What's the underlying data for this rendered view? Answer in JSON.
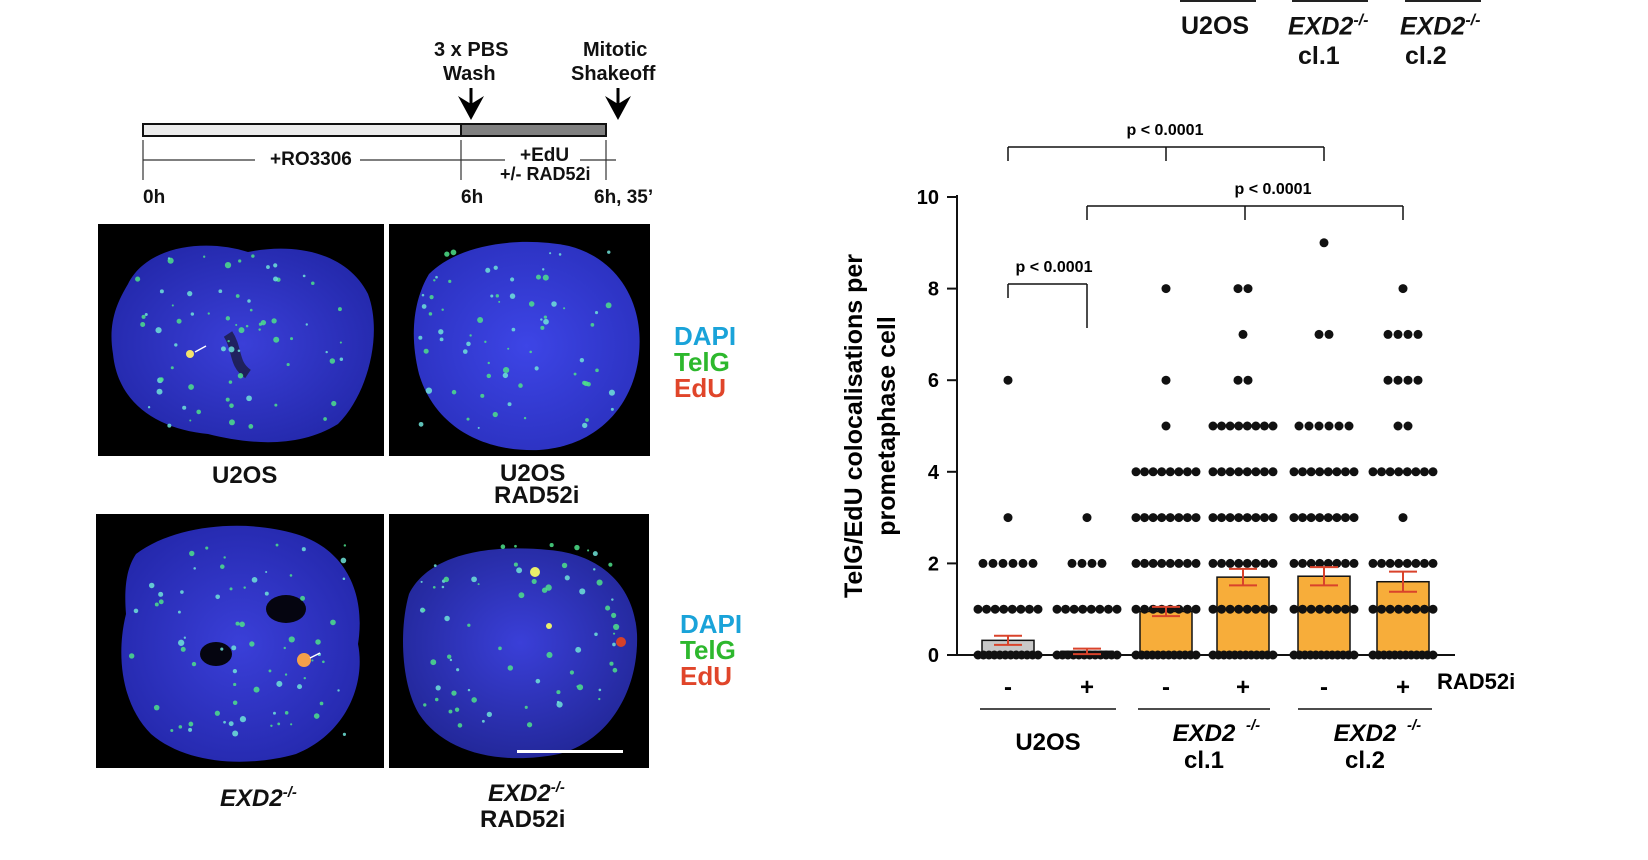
{
  "top_right": {
    "labels": [
      "U2OS",
      "EXD2",
      "cl.1",
      "EXD2",
      "cl.2"
    ],
    "sup": "-/-"
  },
  "timeline": {
    "step1": [
      "3 x PBS",
      "Wash"
    ],
    "step2": [
      "Mitotic",
      "Shakeoff"
    ],
    "treat1": "+RO3306",
    "treat2": [
      "+EdU",
      "+/- RAD52i"
    ],
    "times": [
      "0h",
      "6h",
      "6h, 35’"
    ]
  },
  "panels": {
    "row1": [
      "U2OS",
      "U2OS",
      "RAD52i"
    ],
    "row2_gene": "EXD2",
    "row2_sup": "-/-",
    "row2_right": "RAD52i"
  },
  "legend": {
    "dapi": "DAPI",
    "telg": "TelG",
    "edu": "EdU"
  },
  "colors": {
    "dapi": "#1aa3d9",
    "telg": "#2db82d",
    "edu": "#e0452a",
    "bar_control": "#c8c8c8",
    "bar_exd2": "#f7ad3a",
    "errbar": "#d9432b"
  },
  "chart_data": {
    "type": "bar",
    "ylabel": [
      "TelG/EdU colocalisations per",
      "prometaphase cell"
    ],
    "ylim": [
      0,
      10
    ],
    "yticks": [
      0,
      2,
      4,
      6,
      8,
      10
    ],
    "categories": [
      "-",
      "+",
      "-",
      "+",
      "-",
      "+"
    ],
    "treatment_label": "RAD52i",
    "groups": [
      {
        "label": "U2OS",
        "sup": ""
      },
      {
        "label": "EXD2",
        "sup": "-/-",
        "sub": "cl.1"
      },
      {
        "label": "EXD2",
        "sup": "-/-",
        "sub": "cl.2"
      }
    ],
    "values": [
      0.32,
      0.08,
      0.95,
      1.7,
      1.72,
      1.6
    ],
    "errors": [
      0.1,
      0.06,
      0.1,
      0.18,
      0.2,
      0.22
    ],
    "points": [
      {
        "0": 30,
        "1": 12,
        "2": 6,
        "3": 1,
        "6": 1
      },
      {
        "0": 30,
        "1": 10,
        "2": 4,
        "3": 1
      },
      {
        "0": 30,
        "1": 22,
        "2": 22,
        "3": 14,
        "4": 8,
        "5": 1,
        "6": 1,
        "8": 1
      },
      {
        "0": 30,
        "1": 20,
        "2": 20,
        "3": 18,
        "4": 16,
        "5": 12,
        "6": 2,
        "7": 1,
        "8": 2
      },
      {
        "0": 30,
        "1": 20,
        "2": 18,
        "3": 16,
        "4": 12,
        "5": 6,
        "7": 2,
        "9": 1
      },
      {
        "0": 30,
        "1": 20,
        "2": 18,
        "3": 1,
        "4": 10,
        "5": 2,
        "6": 4,
        "7": 4,
        "8": 1
      }
    ],
    "comparisons": [
      {
        "label": "p < 0.0001",
        "from": 0,
        "to": 1
      },
      {
        "label": "p < 0.0001",
        "from": 0,
        "to": 4
      },
      {
        "label": "p < 0.0001",
        "from": 1,
        "to": 5
      }
    ]
  }
}
